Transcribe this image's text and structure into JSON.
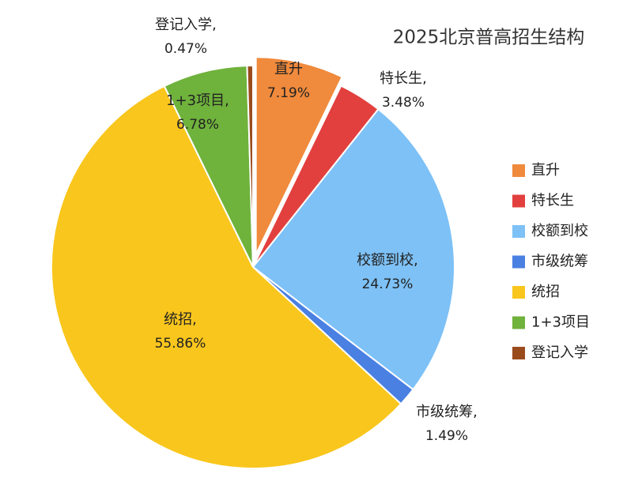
{
  "chart_data": {
    "type": "pie",
    "title": "2025北京普高招生结构",
    "categories": [
      "直升",
      "特长生",
      "校额到校",
      "市级统筹",
      "统招",
      "1+3项目",
      "登记入学"
    ],
    "label_names": [
      "直升",
      "特长生,",
      "校额到校,",
      "市级统筹,",
      "统招,",
      "1+3项目,",
      "登记入学,"
    ],
    "values": [
      7.19,
      3.48,
      24.73,
      1.49,
      55.86,
      6.78,
      0.47
    ],
    "value_labels": [
      "7.19%",
      "3.48%",
      "24.73%",
      "1.49%",
      "55.86%",
      "6.78%",
      "0.47%"
    ],
    "colors": [
      "#f08a3c",
      "#e2403e",
      "#7dc1f6",
      "#4a80e2",
      "#f9c61d",
      "#6fb23c",
      "#9a4b1c"
    ],
    "exploded": [
      true,
      false,
      false,
      false,
      false,
      false,
      false
    ],
    "legend": "right"
  }
}
